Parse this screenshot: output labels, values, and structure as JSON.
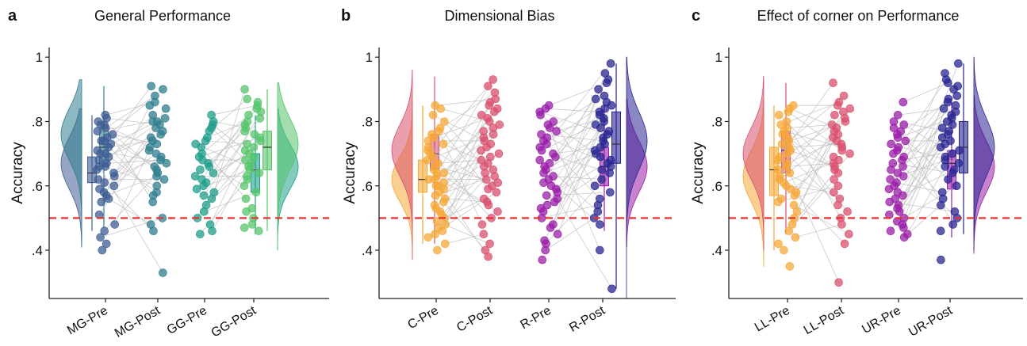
{
  "chart_data": [
    {
      "panel_letter": "a",
      "title": "General Performance",
      "type": "scatter",
      "ylabel": "Accuracy",
      "ylim": [
        0.25,
        1.03
      ],
      "yticks": [
        0.4,
        0.6,
        0.8,
        1.0
      ],
      "ytick_labels": [
        ".4",
        ".6",
        ".8",
        "1"
      ],
      "reference_line": 0.5,
      "reference_line_color": "#e8322f",
      "groups": [
        {
          "name": "MG-Pre",
          "color": "#3f5d94",
          "density_center": 0.67,
          "density_spread": 0.08,
          "box": {
            "q1": 0.61,
            "median": 0.64,
            "q3": 0.69,
            "min": 0.46,
            "max": 0.82
          },
          "points": [
            0.82,
            0.81,
            0.8,
            0.79,
            0.79,
            0.78,
            0.77,
            0.76,
            0.75,
            0.74,
            0.74,
            0.73,
            0.72,
            0.71,
            0.7,
            0.7,
            0.69,
            0.68,
            0.67,
            0.66,
            0.66,
            0.65,
            0.64,
            0.63,
            0.62,
            0.61,
            0.6,
            0.59,
            0.58,
            0.57,
            0.56,
            0.55,
            0.51,
            0.48,
            0.46,
            0.44,
            0.42,
            0.4
          ]
        },
        {
          "name": "MG-Post",
          "color": "#2f7e8e",
          "density_center": 0.76,
          "density_spread": 0.08,
          "box": {
            "q1": 0.66,
            "median": 0.72,
            "q3": 0.78,
            "min": 0.47,
            "max": 0.91
          },
          "points": [
            0.91,
            0.9,
            0.88,
            0.86,
            0.85,
            0.84,
            0.82,
            0.81,
            0.8,
            0.8,
            0.79,
            0.78,
            0.77,
            0.76,
            0.75,
            0.74,
            0.73,
            0.72,
            0.71,
            0.7,
            0.69,
            0.68,
            0.67,
            0.66,
            0.65,
            0.64,
            0.63,
            0.62,
            0.6,
            0.58,
            0.57,
            0.55,
            0.5,
            0.48,
            0.46,
            0.33
          ]
        },
        {
          "name": "GG-Pre",
          "color": "#1f9e8a",
          "density_center": 0.66,
          "density_spread": 0.07,
          "box": {
            "q1": 0.58,
            "median": 0.65,
            "q3": 0.7,
            "min": 0.45,
            "max": 0.82
          },
          "points": [
            0.82,
            0.8,
            0.79,
            0.78,
            0.77,
            0.75,
            0.74,
            0.73,
            0.72,
            0.7,
            0.69,
            0.68,
            0.67,
            0.66,
            0.65,
            0.64,
            0.63,
            0.62,
            0.61,
            0.6,
            0.59,
            0.58,
            0.57,
            0.56,
            0.54,
            0.52,
            0.5,
            0.48,
            0.46,
            0.45
          ]
        },
        {
          "name": "GG-Post",
          "color": "#57c46b",
          "density_center": 0.73,
          "density_spread": 0.08,
          "box": {
            "q1": 0.65,
            "median": 0.72,
            "q3": 0.77,
            "min": 0.46,
            "max": 0.9
          },
          "points": [
            0.9,
            0.87,
            0.86,
            0.85,
            0.84,
            0.83,
            0.82,
            0.81,
            0.8,
            0.79,
            0.78,
            0.77,
            0.76,
            0.75,
            0.74,
            0.73,
            0.72,
            0.71,
            0.7,
            0.69,
            0.68,
            0.67,
            0.66,
            0.65,
            0.64,
            0.63,
            0.62,
            0.6,
            0.58,
            0.56,
            0.53,
            0.52,
            0.5,
            0.48,
            0.47,
            0.46
          ]
        }
      ]
    },
    {
      "panel_letter": "b",
      "title": "Dimensional Bias",
      "type": "scatter",
      "ylabel": "Accuracy",
      "ylim": [
        0.25,
        1.03
      ],
      "yticks": [
        0.4,
        0.6,
        0.8,
        1.0
      ],
      "ytick_labels": [
        ".4",
        ".6",
        ".8",
        "1"
      ],
      "reference_line": 0.5,
      "reference_line_color": "#e8322f",
      "groups": [
        {
          "name": "C-Pre",
          "color": "#f5a838",
          "density_center": 0.62,
          "density_spread": 0.07,
          "box": {
            "q1": 0.58,
            "median": 0.62,
            "q3": 0.68,
            "min": 0.42,
            "max": 0.85
          },
          "points": [
            0.85,
            0.84,
            0.82,
            0.8,
            0.78,
            0.77,
            0.76,
            0.75,
            0.74,
            0.73,
            0.72,
            0.71,
            0.7,
            0.69,
            0.68,
            0.67,
            0.66,
            0.65,
            0.64,
            0.64,
            0.63,
            0.62,
            0.62,
            0.61,
            0.6,
            0.6,
            0.59,
            0.58,
            0.57,
            0.56,
            0.55,
            0.54,
            0.53,
            0.52,
            0.51,
            0.5,
            0.49,
            0.48,
            0.47,
            0.46,
            0.45,
            0.44,
            0.42,
            0.4
          ]
        },
        {
          "name": "C-Post",
          "color": "#d9506e",
          "density_center": 0.71,
          "density_spread": 0.08,
          "box": {
            "q1": 0.65,
            "median": 0.7,
            "q3": 0.76,
            "min": 0.42,
            "max": 0.94
          },
          "points": [
            0.93,
            0.91,
            0.89,
            0.87,
            0.86,
            0.85,
            0.84,
            0.83,
            0.82,
            0.81,
            0.8,
            0.79,
            0.78,
            0.77,
            0.76,
            0.75,
            0.74,
            0.73,
            0.72,
            0.71,
            0.7,
            0.69,
            0.68,
            0.67,
            0.66,
            0.65,
            0.64,
            0.63,
            0.62,
            0.61,
            0.6,
            0.59,
            0.58,
            0.56,
            0.55,
            0.54,
            0.52,
            0.5,
            0.48,
            0.45,
            0.42,
            0.4,
            0.38
          ]
        },
        {
          "name": "R-Pre",
          "color": "#9a1ea8",
          "density_center": 0.66,
          "density_spread": 0.08,
          "box": {
            "q1": 0.6,
            "median": 0.66,
            "q3": 0.72,
            "min": 0.46,
            "max": 0.85
          },
          "points": [
            0.85,
            0.84,
            0.83,
            0.82,
            0.8,
            0.79,
            0.78,
            0.77,
            0.76,
            0.75,
            0.74,
            0.73,
            0.72,
            0.71,
            0.7,
            0.69,
            0.68,
            0.67,
            0.66,
            0.65,
            0.64,
            0.63,
            0.62,
            0.61,
            0.6,
            0.59,
            0.58,
            0.57,
            0.56,
            0.55,
            0.54,
            0.53,
            0.52,
            0.5,
            0.48,
            0.47,
            0.45,
            0.43,
            0.42,
            0.4,
            0.37
          ]
        },
        {
          "name": "R-Post",
          "color": "#2a2592",
          "density_center": 0.74,
          "density_spread": 0.09,
          "box": {
            "q1": 0.67,
            "median": 0.73,
            "q3": 0.83,
            "min": 0.28,
            "max": 0.98
          },
          "points": [
            0.98,
            0.95,
            0.93,
            0.92,
            0.9,
            0.88,
            0.87,
            0.86,
            0.85,
            0.84,
            0.83,
            0.82,
            0.81,
            0.8,
            0.79,
            0.78,
            0.77,
            0.76,
            0.75,
            0.74,
            0.73,
            0.72,
            0.71,
            0.7,
            0.69,
            0.68,
            0.67,
            0.66,
            0.65,
            0.64,
            0.62,
            0.6,
            0.58,
            0.56,
            0.54,
            0.52,
            0.5,
            0.48,
            0.4,
            0.28
          ]
        }
      ]
    },
    {
      "panel_letter": "c",
      "title": "Effect of corner on Performance",
      "type": "scatter",
      "ylabel": "Accuracy",
      "ylim": [
        0.25,
        1.03
      ],
      "yticks": [
        0.4,
        0.6,
        0.8,
        1.0
      ],
      "ytick_labels": [
        ".4",
        ".6",
        ".8",
        "1"
      ],
      "reference_line": 0.5,
      "reference_line_color": "#e8322f",
      "groups": [
        {
          "name": "LL-Pre",
          "color": "#f5a838",
          "density_center": 0.63,
          "density_spread": 0.08,
          "box": {
            "q1": 0.57,
            "median": 0.65,
            "q3": 0.72,
            "min": 0.4,
            "max": 0.85
          },
          "points": [
            0.85,
            0.84,
            0.83,
            0.82,
            0.8,
            0.79,
            0.78,
            0.77,
            0.76,
            0.75,
            0.74,
            0.73,
            0.72,
            0.71,
            0.7,
            0.69,
            0.68,
            0.67,
            0.66,
            0.65,
            0.64,
            0.63,
            0.62,
            0.61,
            0.6,
            0.59,
            0.58,
            0.57,
            0.56,
            0.55,
            0.54,
            0.52,
            0.5,
            0.48,
            0.46,
            0.44,
            0.42,
            0.4,
            0.35
          ]
        },
        {
          "name": "LL-Post",
          "color": "#d9506e",
          "density_center": 0.7,
          "density_spread": 0.08,
          "box": {
            "q1": 0.64,
            "median": 0.71,
            "q3": 0.77,
            "min": 0.45,
            "max": 0.92
          },
          "points": [
            0.92,
            0.88,
            0.86,
            0.85,
            0.84,
            0.83,
            0.82,
            0.81,
            0.8,
            0.79,
            0.78,
            0.77,
            0.76,
            0.75,
            0.74,
            0.73,
            0.72,
            0.71,
            0.7,
            0.69,
            0.68,
            0.67,
            0.66,
            0.65,
            0.64,
            0.62,
            0.6,
            0.58,
            0.56,
            0.54,
            0.52,
            0.5,
            0.48,
            0.45,
            0.42,
            0.3
          ]
        },
        {
          "name": "UR-Pre",
          "color": "#9a1ea8",
          "density_center": 0.66,
          "density_spread": 0.08,
          "box": {
            "q1": 0.59,
            "median": 0.67,
            "q3": 0.71,
            "min": 0.44,
            "max": 0.86
          },
          "points": [
            0.86,
            0.82,
            0.8,
            0.79,
            0.78,
            0.77,
            0.76,
            0.75,
            0.74,
            0.73,
            0.72,
            0.71,
            0.7,
            0.69,
            0.68,
            0.67,
            0.66,
            0.65,
            0.64,
            0.63,
            0.62,
            0.61,
            0.6,
            0.59,
            0.58,
            0.57,
            0.56,
            0.55,
            0.54,
            0.53,
            0.52,
            0.51,
            0.5,
            0.49,
            0.48,
            0.47,
            0.46,
            0.45,
            0.44
          ]
        },
        {
          "name": "UR-Post",
          "color": "#2a2592",
          "density_center": 0.72,
          "density_spread": 0.09,
          "box": {
            "q1": 0.64,
            "median": 0.72,
            "q3": 0.8,
            "min": 0.45,
            "max": 0.98
          },
          "points": [
            0.98,
            0.95,
            0.93,
            0.92,
            0.91,
            0.9,
            0.88,
            0.87,
            0.86,
            0.85,
            0.84,
            0.83,
            0.82,
            0.81,
            0.8,
            0.79,
            0.78,
            0.77,
            0.76,
            0.75,
            0.74,
            0.73,
            0.72,
            0.71,
            0.7,
            0.69,
            0.68,
            0.67,
            0.66,
            0.65,
            0.64,
            0.62,
            0.6,
            0.58,
            0.56,
            0.54,
            0.52,
            0.5,
            0.48,
            0.46,
            0.37
          ]
        }
      ]
    }
  ]
}
